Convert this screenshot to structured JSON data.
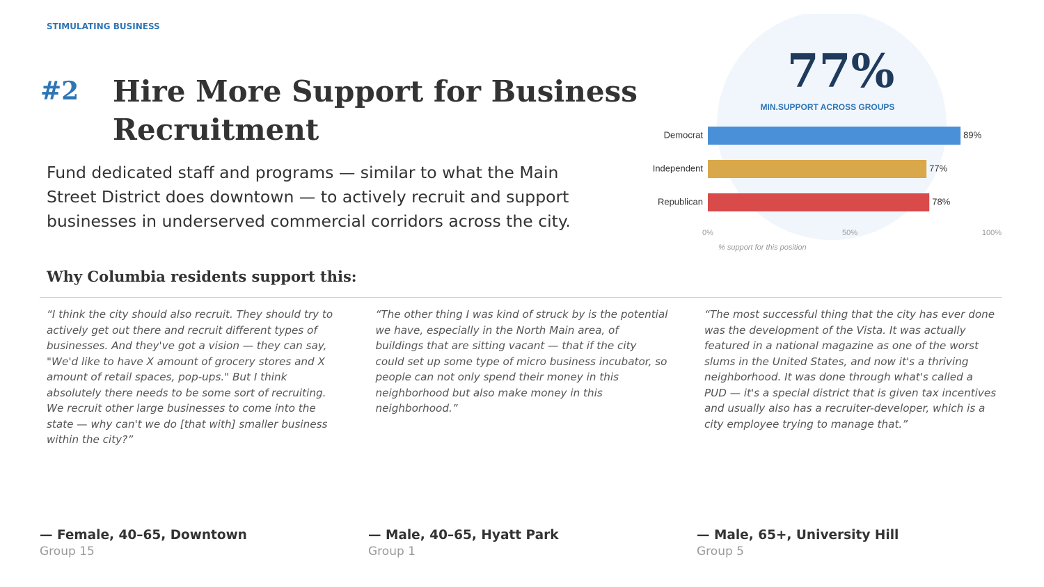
{
  "header": {
    "section": "STIMULATING BUSINESS",
    "number": "#2",
    "title": "Hire More Support for Business Recruitment",
    "description": "Fund dedicated staff and programs — similar to what the Main Street District does downtown — to actively recruit and support businesses in underserved commercial corridors across the city."
  },
  "stat": {
    "value": "77%",
    "label": "MIN.SUPPORT ACROSS GROUPS"
  },
  "chart_data": {
    "type": "bar",
    "orientation": "horizontal",
    "categories": [
      "Democrat",
      "Independent",
      "Republican"
    ],
    "values": [
      89,
      77,
      78
    ],
    "value_labels": [
      "89%",
      "77%",
      "78%"
    ],
    "colors": [
      "#4a90d9",
      "#d9a84a",
      "#d94a4a"
    ],
    "xlim": [
      0,
      100
    ],
    "xticks": [
      {
        "value": 0,
        "label": "0%"
      },
      {
        "value": 50,
        "label": "50%"
      },
      {
        "value": 100,
        "label": "100%"
      }
    ],
    "x_label": "% support for this position",
    "grid": false
  },
  "quotes_heading": "Why Columbia residents support this:",
  "quotes": [
    {
      "text": "“I think the city should also recruit. They should try to actively get out there and recruit different types of businesses. And they've got a vision — they can say, \"We'd like to have X amount of grocery stores and X amount of retail spaces, pop-ups.\" But I think absolutely there needs to be some sort of recruiting. We recruit other large businesses to come into the state — why can't we do [that with] smaller business within the city?”",
      "speaker": "— Female, 40–65, Downtown",
      "group": "Group 15"
    },
    {
      "text": "“The other thing I was kind of struck by is the potential we have, especially in the North Main area, of buildings that are sitting vacant — that if the city could set up some type of micro business incubator, so people can not only spend their money in this neighborhood but also make money in this neighborhood.”",
      "speaker": "— Male, 40–65, Hyatt Park",
      "group": "Group 1"
    },
    {
      "text": "“The most successful thing that the city has ever done was the development of the Vista. It was actually featured in a national magazine as one of the worst slums in the United States, and now it's a thriving neighborhood. It was done through what's called a PUD — it's a special district that is given tax incentives and usually also has a recruiter-developer, which is a city employee trying to manage that.”",
      "speaker": "— Male, 65+, University Hill",
      "group": "Group 5"
    }
  ]
}
